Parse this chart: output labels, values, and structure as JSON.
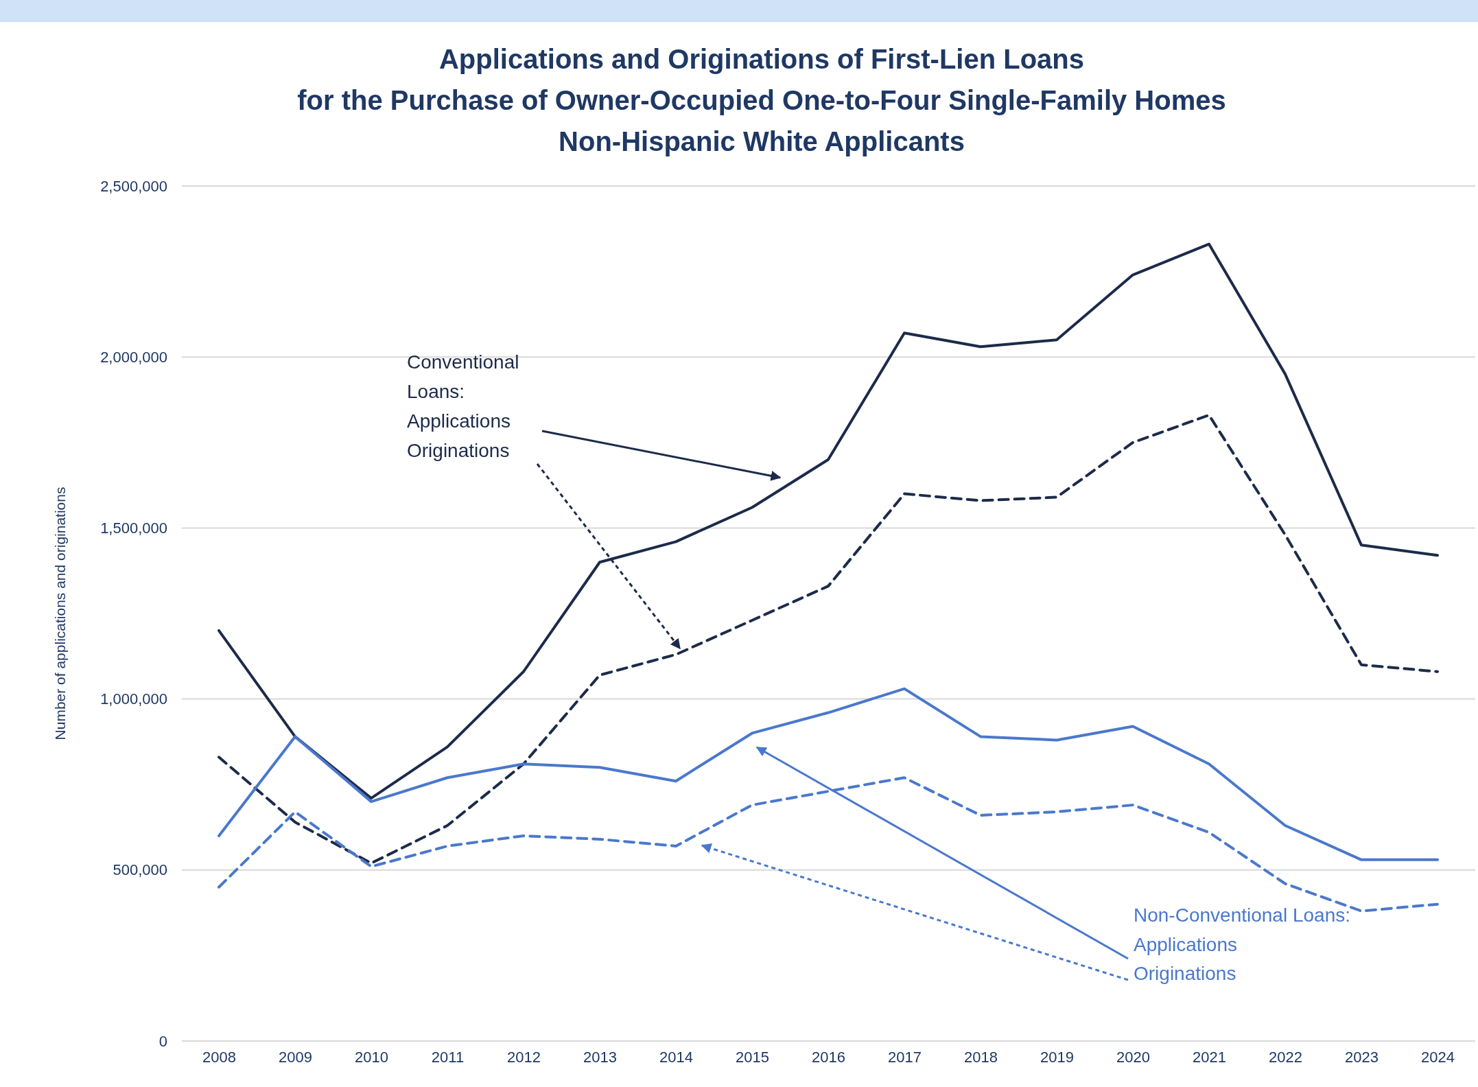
{
  "chart_data": {
    "type": "line",
    "title": "Applications and Originations of First-Lien Loans\nfor the Purchase of Owner-Occupied One-to-Four Single-Family Homes\nNon-Hispanic White Applicants",
    "ylabel": "Number of applications and originations",
    "categories": [
      "2008",
      "2009",
      "2010",
      "2011",
      "2012",
      "2013",
      "2014",
      "2015",
      "2016",
      "2017",
      "2018",
      "2019",
      "2020",
      "2021",
      "2022",
      "2023",
      "2024"
    ],
    "series": [
      {
        "color": "#1c2b4a",
        "line_style": "solid",
        "values": [
          1200000,
          890000,
          710000,
          860000,
          1080000,
          1400000,
          1460000,
          1560000,
          1700000,
          2070000,
          2030000,
          2050000,
          2240000,
          2330000,
          1950000,
          1450000,
          1420000
        ]
      },
      {
        "color": "#1c2b4a",
        "line_style": "dashed",
        "values": [
          830000,
          640000,
          520000,
          630000,
          810000,
          1070000,
          1130000,
          1230000,
          1330000,
          1600000,
          1580000,
          1590000,
          1750000,
          1830000,
          1480000,
          1100000,
          1080000
        ]
      },
      {
        "color": "#4a78cc",
        "line_style": "solid",
        "values": [
          600000,
          890000,
          700000,
          770000,
          810000,
          800000,
          760000,
          900000,
          960000,
          1030000,
          890000,
          880000,
          920000,
          810000,
          630000,
          530000,
          530000
        ]
      },
      {
        "color": "#4a78cc",
        "line_style": "dashed",
        "values": [
          450000,
          670000,
          510000,
          570000,
          600000,
          590000,
          570000,
          690000,
          730000,
          770000,
          660000,
          670000,
          690000,
          610000,
          460000,
          380000,
          400000
        ]
      }
    ],
    "ylim": [
      0,
      2500000
    ],
    "yticks": [
      {
        "value": 0,
        "label": "0"
      },
      {
        "value": 500000,
        "label": "500,000"
      },
      {
        "value": 1000000,
        "label": "1,000,000"
      },
      {
        "value": 1500000,
        "label": "1,500,000"
      },
      {
        "value": 2000000,
        "label": "2,000,000"
      },
      {
        "value": 2500000,
        "label": "2,500,000"
      }
    ],
    "grid": "y",
    "marker": "none",
    "annotations": [
      "Conventional Loans:",
      "Applications",
      "Originations",
      "Non-Conventional Loans:",
      "Applications",
      "Originations"
    ]
  }
}
